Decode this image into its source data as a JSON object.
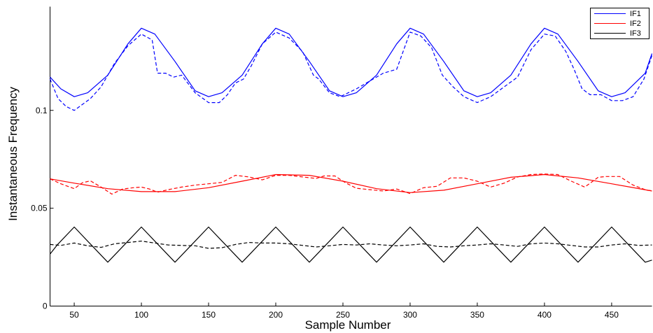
{
  "chart_data": {
    "type": "line",
    "title": "",
    "xlabel": "Sample Number",
    "ylabel": "Instantaneous Frequency",
    "xlim": [
      32,
      480
    ],
    "ylim": [
      0,
      0.153
    ],
    "xticks": [
      50,
      100,
      150,
      200,
      250,
      300,
      350,
      400,
      450
    ],
    "yticks": [
      0,
      0.05,
      0.1
    ],
    "ytick_labels": [
      "0",
      "0.05",
      "0.1"
    ],
    "grid": false,
    "legend_position": "top-right",
    "legend": [
      "IF1",
      "IF2",
      "IF3"
    ],
    "colors": {
      "IF1": "#0000ff",
      "IF2": "#ff0000",
      "IF3": "#000000"
    },
    "series": [
      {
        "name": "IF1",
        "style": "solid",
        "color": "#0000ff",
        "x": [
          32,
          40,
          50,
          60,
          75,
          90,
          100,
          110,
          125,
          140,
          150,
          160,
          175,
          190,
          200,
          210,
          225,
          240,
          250,
          260,
          275,
          290,
          300,
          310,
          325,
          340,
          350,
          360,
          375,
          390,
          400,
          410,
          425,
          440,
          450,
          460,
          475,
          480
        ],
        "y": [
          0.117,
          0.111,
          0.107,
          0.109,
          0.118,
          0.134,
          0.142,
          0.139,
          0.125,
          0.11,
          0.107,
          0.109,
          0.118,
          0.134,
          0.142,
          0.139,
          0.125,
          0.11,
          0.107,
          0.109,
          0.118,
          0.134,
          0.142,
          0.139,
          0.125,
          0.11,
          0.107,
          0.109,
          0.118,
          0.134,
          0.142,
          0.139,
          0.125,
          0.11,
          0.107,
          0.109,
          0.119,
          0.129
        ]
      },
      {
        "name": "IF1",
        "style": "dashed",
        "color": "#0000ff",
        "x": [
          32,
          38,
          44,
          50,
          56,
          62,
          70,
          80,
          90,
          100,
          108,
          112,
          118,
          124,
          130,
          140,
          150,
          158,
          164,
          170,
          176,
          182,
          190,
          200,
          210,
          220,
          228,
          232,
          240,
          248,
          254,
          260,
          270,
          280,
          290,
          300,
          308,
          316,
          324,
          332,
          340,
          350,
          360,
          370,
          380,
          390,
          400,
          408,
          416,
          422,
          428,
          434,
          442,
          450,
          458,
          466,
          474,
          480
        ],
        "y": [
          0.116,
          0.106,
          0.102,
          0.1,
          0.103,
          0.106,
          0.112,
          0.124,
          0.133,
          0.139,
          0.136,
          0.119,
          0.119,
          0.117,
          0.118,
          0.109,
          0.104,
          0.104,
          0.108,
          0.114,
          0.116,
          0.123,
          0.134,
          0.14,
          0.137,
          0.13,
          0.118,
          0.116,
          0.109,
          0.107,
          0.109,
          0.111,
          0.115,
          0.119,
          0.121,
          0.14,
          0.138,
          0.132,
          0.118,
          0.112,
          0.107,
          0.104,
          0.107,
          0.112,
          0.117,
          0.131,
          0.139,
          0.138,
          0.13,
          0.121,
          0.111,
          0.108,
          0.108,
          0.105,
          0.105,
          0.107,
          0.116,
          0.128
        ]
      },
      {
        "name": "IF2",
        "style": "solid",
        "color": "#ff0000",
        "x": [
          32,
          50,
          75,
          100,
          125,
          150,
          175,
          200,
          225,
          250,
          275,
          300,
          325,
          350,
          375,
          400,
          425,
          450,
          480
        ],
        "y": [
          0.065,
          0.0628,
          0.06,
          0.0585,
          0.0585,
          0.0605,
          0.0638,
          0.0672,
          0.0668,
          0.0638,
          0.06,
          0.058,
          0.0592,
          0.0625,
          0.0658,
          0.0672,
          0.0655,
          0.0625,
          0.0588
        ]
      },
      {
        "name": "IF2",
        "style": "dashed",
        "color": "#ff0000",
        "x": [
          32,
          40,
          50,
          56,
          62,
          70,
          78,
          86,
          94,
          100,
          106,
          112,
          120,
          130,
          140,
          150,
          160,
          170,
          180,
          190,
          200,
          210,
          220,
          230,
          236,
          244,
          252,
          260,
          270,
          280,
          290,
          300,
          310,
          320,
          330,
          340,
          350,
          360,
          370,
          380,
          390,
          400,
          410,
          420,
          430,
          440,
          446,
          456,
          466,
          476,
          480
        ],
        "y": [
          0.065,
          0.0625,
          0.06,
          0.063,
          0.064,
          0.0608,
          0.0572,
          0.0598,
          0.0605,
          0.0608,
          0.0598,
          0.0582,
          0.0595,
          0.0608,
          0.0618,
          0.0625,
          0.0632,
          0.0668,
          0.066,
          0.0645,
          0.0668,
          0.0668,
          0.066,
          0.0652,
          0.0665,
          0.0665,
          0.063,
          0.0602,
          0.0595,
          0.0588,
          0.0598,
          0.0575,
          0.0605,
          0.0612,
          0.0655,
          0.0655,
          0.0638,
          0.0608,
          0.0628,
          0.066,
          0.0672,
          0.0675,
          0.0672,
          0.0638,
          0.0608,
          0.0658,
          0.0662,
          0.0662,
          0.0618,
          0.0592,
          0.059
        ]
      },
      {
        "name": "IF3",
        "style": "solid",
        "color": "#000000",
        "x": [
          32,
          37.5,
          50,
          62.5,
          75,
          87.5,
          100,
          112.5,
          125,
          137.5,
          150,
          162.5,
          175,
          187.5,
          200,
          212.5,
          225,
          237.5,
          250,
          262.5,
          275,
          287.5,
          300,
          312.5,
          325,
          337.5,
          350,
          362.5,
          375,
          387.5,
          400,
          412.5,
          425,
          437.5,
          450,
          462.5,
          475,
          480
        ],
        "y": [
          0.0266,
          0.0314,
          0.0404,
          0.0314,
          0.0224,
          0.0314,
          0.0404,
          0.0314,
          0.0224,
          0.0314,
          0.0404,
          0.0314,
          0.0224,
          0.0314,
          0.0404,
          0.0314,
          0.0224,
          0.0314,
          0.0404,
          0.0314,
          0.0224,
          0.0314,
          0.0404,
          0.0314,
          0.0224,
          0.0314,
          0.0404,
          0.0314,
          0.0224,
          0.0314,
          0.0404,
          0.0314,
          0.0224,
          0.0314,
          0.0404,
          0.0314,
          0.0224,
          0.0235
        ]
      },
      {
        "name": "IF3",
        "style": "dashed",
        "color": "#000000",
        "x": [
          32,
          40,
          50,
          60,
          70,
          80,
          90,
          100,
          110,
          120,
          130,
          140,
          150,
          160,
          170,
          180,
          190,
          200,
          210,
          220,
          230,
          240,
          250,
          260,
          270,
          280,
          290,
          300,
          310,
          320,
          330,
          340,
          350,
          360,
          370,
          380,
          390,
          400,
          410,
          420,
          430,
          440,
          450,
          460,
          470,
          480
        ],
        "y": [
          0.0315,
          0.031,
          0.0322,
          0.0308,
          0.03,
          0.0318,
          0.0325,
          0.0332,
          0.0322,
          0.0312,
          0.031,
          0.0308,
          0.0295,
          0.0298,
          0.0315,
          0.0325,
          0.0322,
          0.0322,
          0.0318,
          0.031,
          0.0302,
          0.0308,
          0.0315,
          0.0312,
          0.0318,
          0.0312,
          0.0308,
          0.0312,
          0.0318,
          0.0305,
          0.0302,
          0.0308,
          0.0312,
          0.0318,
          0.0312,
          0.0305,
          0.0318,
          0.0322,
          0.0318,
          0.031,
          0.0302,
          0.0302,
          0.0312,
          0.0318,
          0.031,
          0.0312
        ]
      }
    ]
  }
}
